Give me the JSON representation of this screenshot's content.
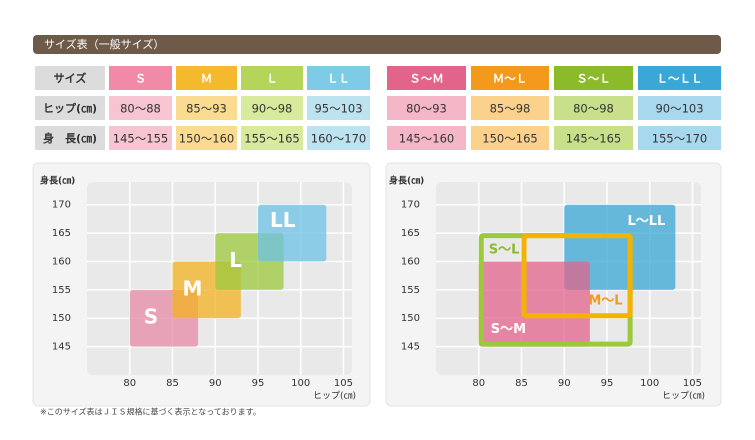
{
  "header": {
    "title": "サイズ表（一般サイズ）"
  },
  "tables": [
    {
      "header": [
        "サイズ",
        "Ｓ",
        "Ｍ",
        "Ｌ",
        "ＬＬ"
      ],
      "header_colors": [
        "#dcdcdc",
        "#f08aa6",
        "#f5b92d",
        "#b4d45a",
        "#7ecbe8"
      ],
      "cell_colors": [
        "#dcdcdc",
        "#f7c5d2",
        "#fbdb8f",
        "#d8ea9c",
        "#bde3f1"
      ],
      "rows": [
        [
          "ヒップ(㎝)",
          "80～88",
          "85～93",
          "90～98",
          "95～103"
        ],
        [
          "身　長(㎝)",
          "145～155",
          "150～160",
          "155～165",
          "160～170"
        ]
      ]
    },
    {
      "header": [
        "Ｓ～Ｍ",
        "Ｍ～Ｌ",
        "Ｓ～Ｌ",
        "Ｌ～ＬＬ"
      ],
      "header_colors": [
        "#e2648b",
        "#f39a1c",
        "#8bbb2a",
        "#3aa7d6"
      ],
      "cell_colors": [
        "#f5b7c8",
        "#fcd18b",
        "#c8e08a",
        "#a8d8ee"
      ],
      "rows": [
        [
          "80～93",
          "85～98",
          "80～98",
          "90～103"
        ],
        [
          "145～160",
          "150～165",
          "145～165",
          "155～170"
        ]
      ]
    }
  ],
  "charts": [
    {
      "y_label": "身長(㎝)",
      "x_label": "ヒップ(㎝)",
      "xlim": [
        75,
        106
      ],
      "ylim": [
        140,
        174
      ],
      "xticks": [
        80,
        85,
        90,
        95,
        100,
        105
      ],
      "yticks": [
        145,
        150,
        155,
        160,
        165,
        170
      ],
      "boxes": [
        {
          "label": "S",
          "hip": [
            80,
            88
          ],
          "height": [
            145,
            155
          ],
          "color": "#e58aa6",
          "style": "fill"
        },
        {
          "label": "M",
          "hip": [
            85,
            93
          ],
          "height": [
            150,
            160
          ],
          "color": "#f2b120",
          "style": "fill"
        },
        {
          "label": "L",
          "hip": [
            90,
            98
          ],
          "height": [
            155,
            165
          ],
          "color": "#9cc83c",
          "style": "fill"
        },
        {
          "label": "LL",
          "hip": [
            95,
            103
          ],
          "height": [
            160,
            170
          ],
          "color": "#6cc1e4",
          "style": "fill"
        }
      ]
    },
    {
      "y_label": "身長(㎝)",
      "x_label": "ヒップ(㎝)",
      "xlim": [
        75,
        106
      ],
      "ylim": [
        140,
        174
      ],
      "xticks": [
        80,
        85,
        90,
        95,
        100,
        105
      ],
      "yticks": [
        145,
        150,
        155,
        160,
        165,
        170
      ],
      "boxes": [
        {
          "label": "L～LL",
          "hip": [
            90,
            103
          ],
          "height": [
            155,
            170
          ],
          "color": "#3aa7d6",
          "style": "fill"
        },
        {
          "label": "S～M",
          "hip": [
            80,
            93
          ],
          "height": [
            145,
            160
          ],
          "color": "#e2648b",
          "style": "fill"
        },
        {
          "label": "S～L",
          "hip": [
            80,
            98
          ],
          "height": [
            145,
            165
          ],
          "color": "#9cc83c",
          "style": "outline"
        },
        {
          "label": "M～L",
          "hip": [
            85,
            98
          ],
          "height": [
            150,
            165
          ],
          "color": "#f5b200",
          "style": "outline"
        }
      ]
    }
  ],
  "footnote": "※このサイズ表はＪＩＳ規格に基づく表示となっております。"
}
